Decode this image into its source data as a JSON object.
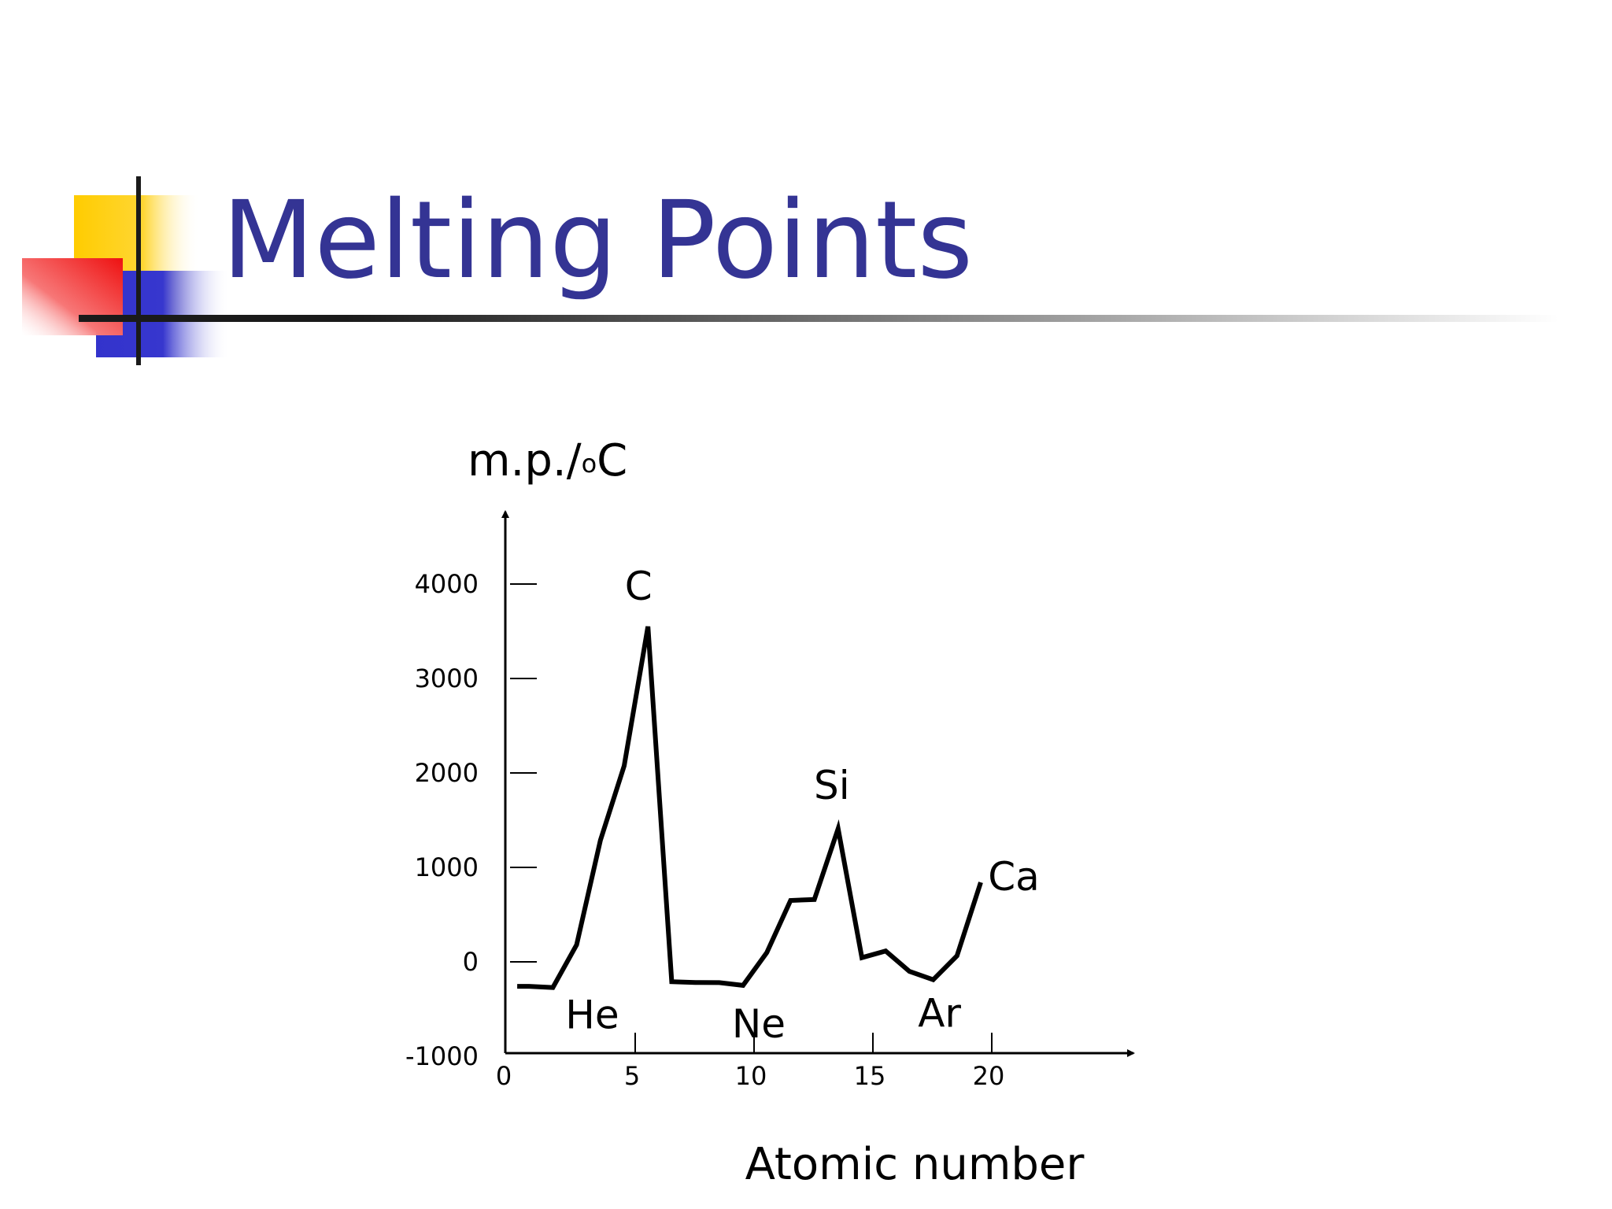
{
  "slide": {
    "title": "Melting Points",
    "colors": {
      "title": "#343494",
      "logo_yellow": "#FFCC00",
      "logo_red": "#EE2222",
      "logo_blue": "#3333CC"
    }
  },
  "chart_data": {
    "type": "line",
    "ylabel_main": "m.p./",
    "ylabel_sup": "o",
    "ylabel_unit": "C",
    "xlabel": "Atomic number",
    "xlim": [
      0,
      26
    ],
    "ylim": [
      -1000,
      4900
    ],
    "xticks": [
      0,
      5,
      10,
      15,
      20
    ],
    "yticks": [
      -1000,
      0,
      1000,
      2000,
      3000,
      4000
    ],
    "grid": false,
    "series": [
      {
        "x": [
          1,
          2,
          3,
          4,
          5,
          6,
          7,
          8,
          9,
          10,
          11,
          12,
          13,
          14,
          15,
          16,
          17,
          18,
          19,
          20
        ],
        "y": [
          -259,
          -272,
          181,
          1287,
          2076,
          3550,
          -210,
          -218,
          -220,
          -249,
          98,
          650,
          660,
          1410,
          44,
          115,
          -101,
          -189,
          63,
          842
        ]
      }
    ],
    "annotations": [
      {
        "text": "He",
        "x": 2,
        "y": -272
      },
      {
        "text": "C",
        "x": 6,
        "y": 3550
      },
      {
        "text": "Ne",
        "x": 10,
        "y": -249
      },
      {
        "text": "Si",
        "x": 14,
        "y": 1410
      },
      {
        "text": "Ar",
        "x": 18,
        "y": -189
      },
      {
        "text": "Ca",
        "x": 20,
        "y": 842
      }
    ]
  }
}
